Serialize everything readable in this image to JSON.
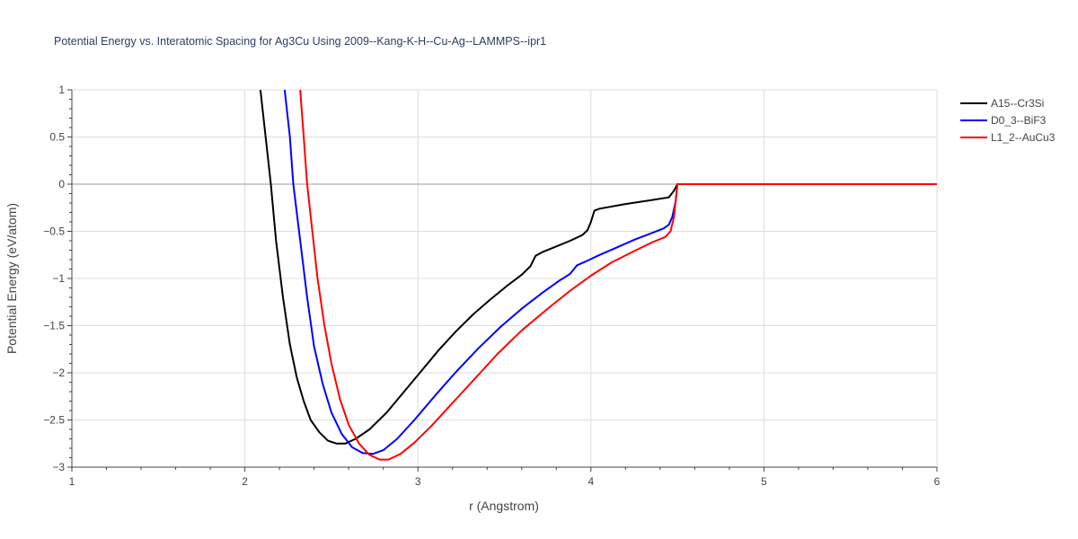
{
  "chart_data": {
    "type": "line",
    "title": "Potential Energy vs. Interatomic Spacing for Ag3Cu Using 2009--Kang-K-H--Cu-Ag--LAMMPS--ipr1",
    "xlabel": "r (Angstrom)",
    "ylabel": "Potential Energy (eV/atom)",
    "xlim": [
      1,
      6
    ],
    "ylim": [
      -3,
      1
    ],
    "xticks": [
      1,
      2,
      3,
      4,
      5,
      6
    ],
    "xtick_labels": [
      "1",
      "2",
      "3",
      "4",
      "5",
      "6"
    ],
    "yticks": [
      1,
      0.5,
      0,
      -0.5,
      -1,
      -1.5,
      -2,
      -2.5,
      -3
    ],
    "ytick_labels": [
      "1",
      "0.5",
      "0",
      "−0.5",
      "−1",
      "−1.5",
      "−2",
      "−2.5",
      "−3"
    ],
    "grid": true,
    "legend_position": "top-right",
    "series": [
      {
        "name": "A15--Cr3Si",
        "color": "#000000",
        "points": [
          [
            2.09,
            1.0
          ],
          [
            2.12,
            0.5
          ],
          [
            2.15,
            0.0
          ],
          [
            2.18,
            -0.6
          ],
          [
            2.22,
            -1.2
          ],
          [
            2.26,
            -1.7
          ],
          [
            2.3,
            -2.05
          ],
          [
            2.34,
            -2.3
          ],
          [
            2.38,
            -2.5
          ],
          [
            2.43,
            -2.63
          ],
          [
            2.48,
            -2.72
          ],
          [
            2.53,
            -2.75
          ],
          [
            2.58,
            -2.75
          ],
          [
            2.64,
            -2.7
          ],
          [
            2.72,
            -2.6
          ],
          [
            2.82,
            -2.42
          ],
          [
            2.92,
            -2.2
          ],
          [
            3.02,
            -1.98
          ],
          [
            3.12,
            -1.76
          ],
          [
            3.22,
            -1.56
          ],
          [
            3.32,
            -1.38
          ],
          [
            3.42,
            -1.22
          ],
          [
            3.52,
            -1.07
          ],
          [
            3.6,
            -0.96
          ],
          [
            3.65,
            -0.87
          ],
          [
            3.68,
            -0.76
          ],
          [
            3.72,
            -0.72
          ],
          [
            3.8,
            -0.66
          ],
          [
            3.88,
            -0.6
          ],
          [
            3.95,
            -0.54
          ],
          [
            3.98,
            -0.49
          ],
          [
            4.0,
            -0.4
          ],
          [
            4.02,
            -0.28
          ],
          [
            4.05,
            -0.26
          ],
          [
            4.2,
            -0.21
          ],
          [
            4.35,
            -0.17
          ],
          [
            4.45,
            -0.14
          ],
          [
            4.48,
            -0.07
          ],
          [
            4.5,
            0.0
          ],
          [
            6.0,
            0.0
          ]
        ]
      },
      {
        "name": "D0_3--BiF3",
        "color": "#0000ff",
        "points": [
          [
            2.23,
            1.0
          ],
          [
            2.26,
            0.5
          ],
          [
            2.28,
            0.0
          ],
          [
            2.32,
            -0.6
          ],
          [
            2.36,
            -1.2
          ],
          [
            2.4,
            -1.72
          ],
          [
            2.45,
            -2.12
          ],
          [
            2.5,
            -2.42
          ],
          [
            2.56,
            -2.65
          ],
          [
            2.62,
            -2.79
          ],
          [
            2.68,
            -2.85
          ],
          [
            2.74,
            -2.86
          ],
          [
            2.8,
            -2.82
          ],
          [
            2.88,
            -2.7
          ],
          [
            2.98,
            -2.5
          ],
          [
            3.1,
            -2.24
          ],
          [
            3.22,
            -1.99
          ],
          [
            3.35,
            -1.74
          ],
          [
            3.48,
            -1.51
          ],
          [
            3.6,
            -1.32
          ],
          [
            3.72,
            -1.15
          ],
          [
            3.82,
            -1.02
          ],
          [
            3.88,
            -0.95
          ],
          [
            3.92,
            -0.86
          ],
          [
            3.97,
            -0.82
          ],
          [
            4.05,
            -0.75
          ],
          [
            4.15,
            -0.67
          ],
          [
            4.25,
            -0.59
          ],
          [
            4.35,
            -0.52
          ],
          [
            4.42,
            -0.47
          ],
          [
            4.45,
            -0.43
          ],
          [
            4.47,
            -0.35
          ],
          [
            4.49,
            -0.18
          ],
          [
            4.5,
            0.0
          ],
          [
            6.0,
            0.0
          ]
        ]
      },
      {
        "name": "L1_2--AuCu3",
        "color": "#ff0000",
        "points": [
          [
            2.32,
            1.0
          ],
          [
            2.34,
            0.5
          ],
          [
            2.36,
            0.0
          ],
          [
            2.39,
            -0.5
          ],
          [
            2.42,
            -1.0
          ],
          [
            2.46,
            -1.5
          ],
          [
            2.5,
            -1.9
          ],
          [
            2.55,
            -2.28
          ],
          [
            2.6,
            -2.55
          ],
          [
            2.66,
            -2.75
          ],
          [
            2.72,
            -2.87
          ],
          [
            2.78,
            -2.92
          ],
          [
            2.83,
            -2.92
          ],
          [
            2.9,
            -2.86
          ],
          [
            2.98,
            -2.74
          ],
          [
            3.08,
            -2.56
          ],
          [
            3.2,
            -2.32
          ],
          [
            3.33,
            -2.06
          ],
          [
            3.46,
            -1.8
          ],
          [
            3.6,
            -1.55
          ],
          [
            3.75,
            -1.32
          ],
          [
            3.88,
            -1.13
          ],
          [
            4.0,
            -0.97
          ],
          [
            4.12,
            -0.83
          ],
          [
            4.25,
            -0.71
          ],
          [
            4.35,
            -0.62
          ],
          [
            4.43,
            -0.56
          ],
          [
            4.46,
            -0.5
          ],
          [
            4.48,
            -0.35
          ],
          [
            4.5,
            0.0
          ],
          [
            6.0,
            0.0
          ]
        ]
      }
    ]
  }
}
